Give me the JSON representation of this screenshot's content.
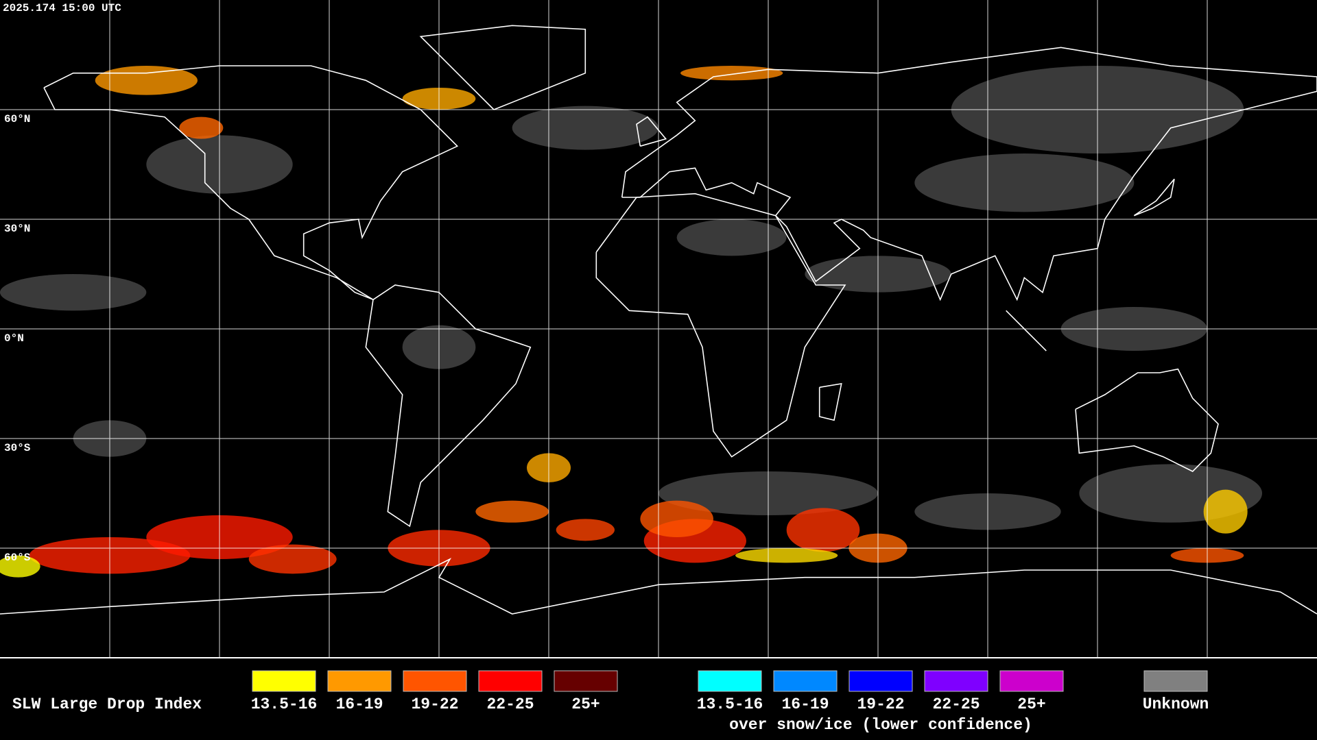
{
  "header": {
    "timestamp": "2025.174 15:00 UTC"
  },
  "latitude_labels": [
    "60°N",
    "30°N",
    "0°N",
    "30°S",
    "60°S"
  ],
  "legend": {
    "title": "SLW Large Drop Index",
    "groups": [
      {
        "items": [
          {
            "label": "13.5-16",
            "color": "#ffff00"
          },
          {
            "label": "16-19",
            "color": "#ff9900"
          },
          {
            "label": "19-22",
            "color": "#ff5500"
          },
          {
            "label": "22-25",
            "color": "#ff0000"
          },
          {
            "label": "25+",
            "color": "#660000"
          }
        ]
      },
      {
        "items": [
          {
            "label": "13.5-16",
            "color": "#00ffff"
          },
          {
            "label": "16-19",
            "color": "#0088ff"
          },
          {
            "label": "19-22",
            "color": "#0000ff"
          },
          {
            "label": "22-25",
            "color": "#7f00ff"
          },
          {
            "label": "25+",
            "color": "#cc00cc"
          }
        ],
        "caption": "over snow/ice (lower confidence)"
      },
      {
        "items": [
          {
            "label": "Unknown",
            "color": "#808080"
          }
        ]
      }
    ]
  }
}
